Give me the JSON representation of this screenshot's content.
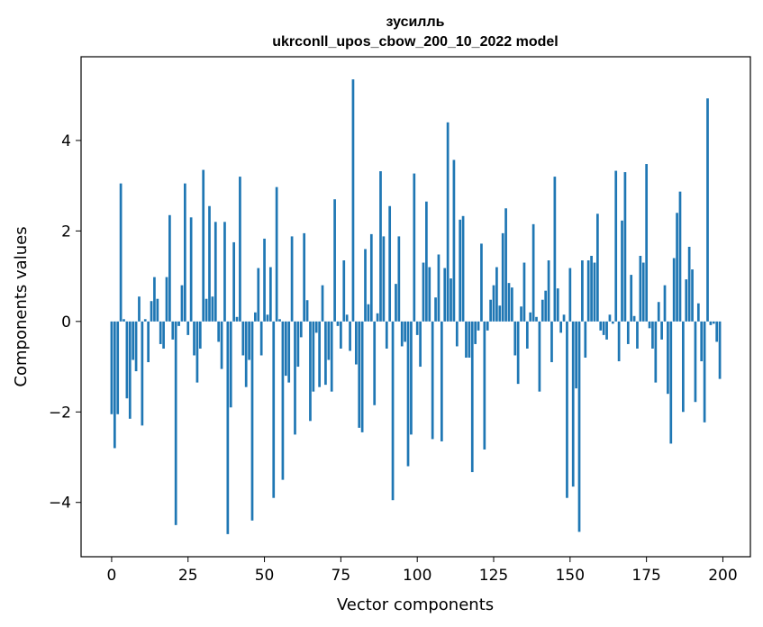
{
  "chart_data": {
    "type": "bar",
    "title_lines": [
      "зусилль",
      "ukrconll_upos_cbow_200_10_2022 model"
    ],
    "xlabel": "Vector components",
    "ylabel": "Components values",
    "xlim": [
      -10,
      209
    ],
    "ylim": [
      -5.2,
      5.85
    ],
    "xticks": [
      0,
      25,
      50,
      75,
      100,
      125,
      150,
      175,
      200
    ],
    "yticks": [
      -4,
      -2,
      0,
      2,
      4
    ],
    "ytick_labels": [
      "−4",
      "−2",
      "0",
      "2",
      "4"
    ],
    "bar_color": "#1f77b4",
    "grid": false,
    "values": [
      -2.05,
      -2.8,
      -2.05,
      3.05,
      0.05,
      -1.7,
      -2.15,
      -0.85,
      -1.1,
      0.55,
      -2.3,
      0.05,
      -0.9,
      0.45,
      0.98,
      0.5,
      -0.5,
      -0.6,
      0.98,
      2.35,
      -0.4,
      -4.5,
      -0.1,
      0.8,
      3.05,
      -0.3,
      2.3,
      -0.75,
      -1.35,
      -0.6,
      3.35,
      0.5,
      2.55,
      0.55,
      2.2,
      -0.45,
      -1.05,
      2.2,
      -4.7,
      -1.9,
      1.75,
      0.1,
      3.2,
      -0.75,
      -1.45,
      -0.85,
      -4.4,
      0.2,
      1.18,
      -0.75,
      1.83,
      0.15,
      1.2,
      -3.9,
      2.97,
      0.05,
      -3.5,
      -1.2,
      -1.35,
      1.88,
      -2.5,
      -1.0,
      -0.35,
      1.95,
      0.47,
      -2.2,
      -1.55,
      -0.25,
      -1.45,
      0.8,
      -1.4,
      -0.85,
      -1.55,
      2.7,
      -0.1,
      -0.6,
      1.35,
      0.15,
      -0.65,
      5.35,
      -0.95,
      -2.35,
      -2.45,
      1.6,
      0.38,
      1.93,
      -1.85,
      0.18,
      3.32,
      1.88,
      -0.6,
      2.55,
      -3.95,
      0.83,
      1.88,
      -0.55,
      -0.45,
      -3.2,
      -2.5,
      3.27,
      -0.3,
      -1.0,
      1.3,
      2.65,
      1.2,
      -2.6,
      0.53,
      1.48,
      -2.65,
      1.18,
      4.4,
      0.95,
      3.57,
      -0.55,
      2.25,
      2.33,
      -0.8,
      -0.8,
      -3.33,
      -0.5,
      -0.2,
      1.72,
      -2.83,
      -0.2,
      0.48,
      0.8,
      1.2,
      0.35,
      1.95,
      2.5,
      0.85,
      0.75,
      -0.75,
      -1.38,
      0.33,
      1.3,
      -0.6,
      0.2,
      2.15,
      0.1,
      -1.55,
      0.48,
      0.68,
      1.35,
      -0.9,
      3.2,
      0.73,
      -0.25,
      0.15,
      -3.9,
      1.18,
      -3.65,
      -1.48,
      -4.65,
      1.35,
      -0.8,
      1.35,
      1.45,
      1.3,
      2.38,
      -0.2,
      -0.3,
      -0.4,
      0.15,
      -0.05,
      3.33,
      -0.88,
      2.23,
      3.3,
      -0.5,
      1.03,
      0.12,
      -0.6,
      1.45,
      1.3,
      3.48,
      -0.15,
      -0.6,
      -1.35,
      0.43,
      -0.4,
      0.8,
      -1.6,
      -2.7,
      1.4,
      2.4,
      2.87,
      -2.0,
      0.93,
      1.65,
      1.15,
      -1.78,
      0.4,
      -0.88,
      -2.23,
      4.93,
      -0.08,
      -0.05,
      -0.45,
      -1.27
    ]
  }
}
